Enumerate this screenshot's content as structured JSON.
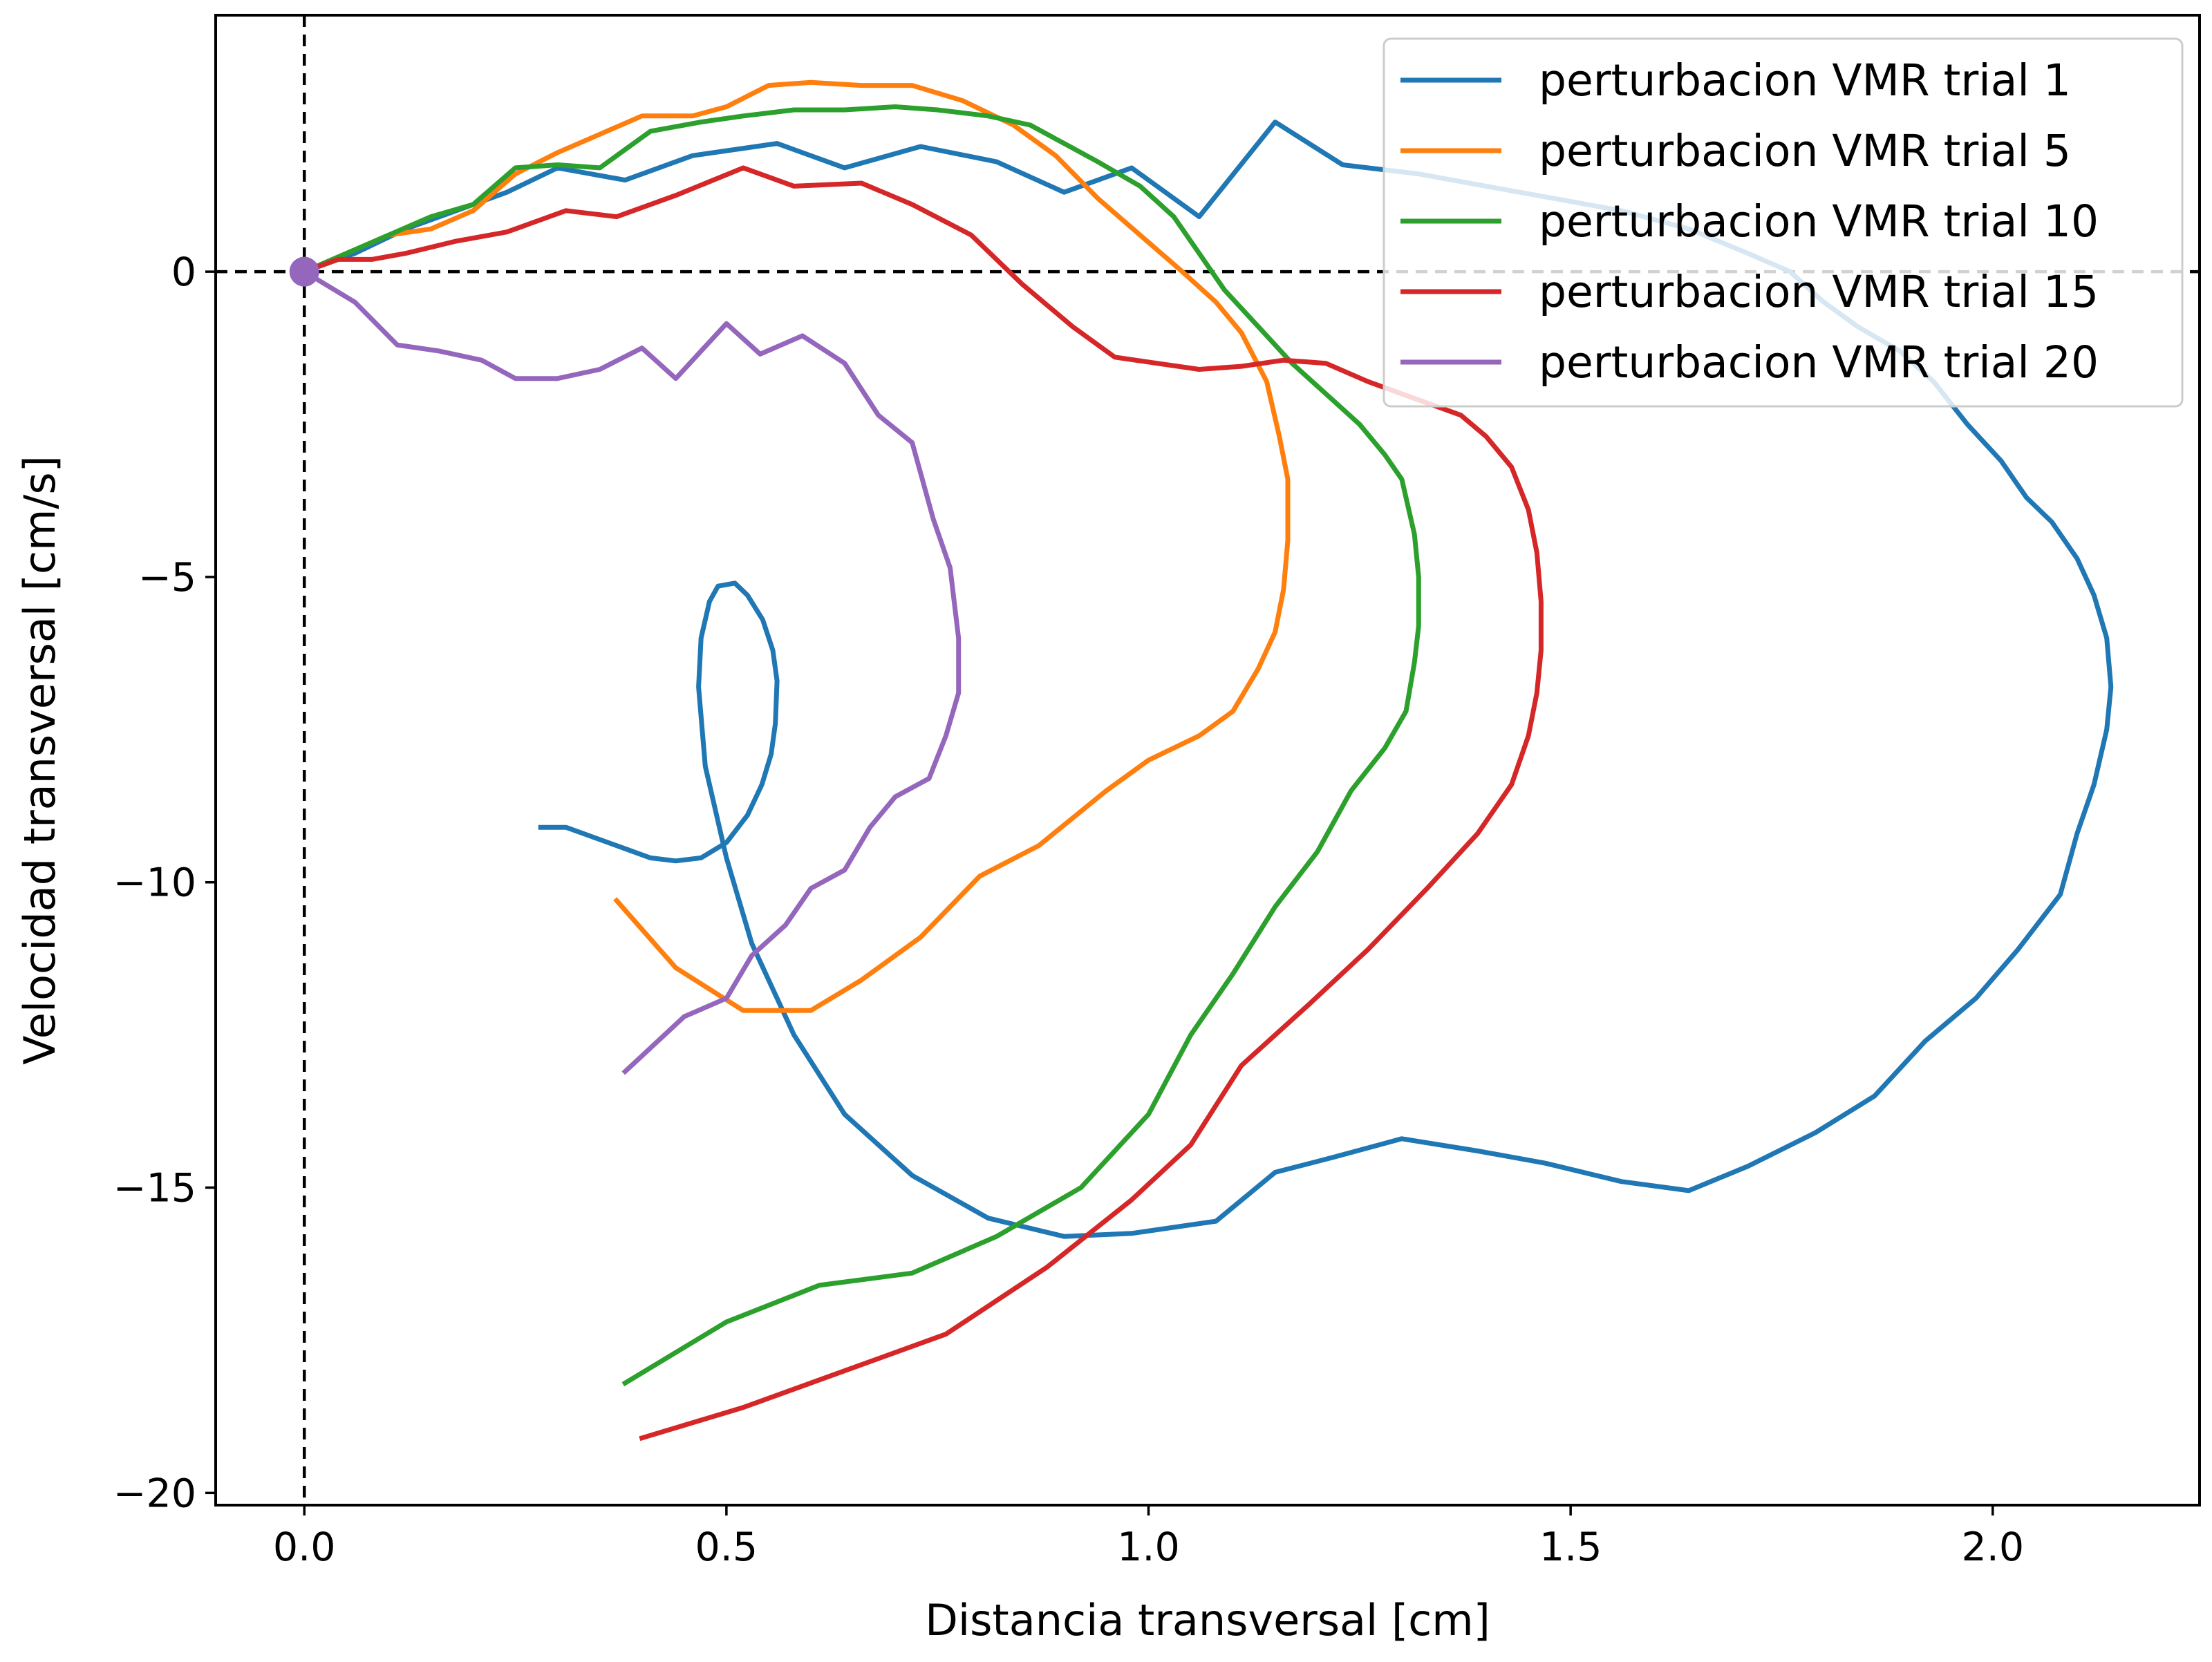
{
  "chart_data": {
    "type": "line",
    "title": "",
    "xlabel": "Distancia transversal [cm]",
    "ylabel": "Velocidad transversal [cm/s]",
    "xlim": [
      -0.105,
      2.245
    ],
    "ylim": [
      -20.2,
      4.2
    ],
    "x_ticks": [
      0.0,
      0.5,
      1.0,
      1.5,
      2.0
    ],
    "x_tick_labels": [
      "0.0",
      "0.5",
      "1.0",
      "1.5",
      "2.0"
    ],
    "y_ticks": [
      0,
      -5,
      -10,
      -15,
      -20
    ],
    "y_tick_labels": [
      "0",
      "−5",
      "−10",
      "−15",
      "−20"
    ],
    "grid": false,
    "legend_position": "top-right",
    "reference_lines": [
      {
        "orientation": "horizontal",
        "value": 0,
        "style": "dashed",
        "color": "#000000"
      },
      {
        "orientation": "vertical",
        "value": 0,
        "style": "dashed",
        "color": "#000000"
      }
    ],
    "origin_marker": {
      "x": 0,
      "y": 0,
      "color": "#9467bd"
    },
    "series": [
      {
        "name": "perturbacion VMR trial 1",
        "color": "#1f77b4",
        "points": [
          [
            0,
            0
          ],
          [
            0.06,
            0.3
          ],
          [
            0.12,
            0.7
          ],
          [
            0.18,
            1.0
          ],
          [
            0.24,
            1.3
          ],
          [
            0.3,
            1.7
          ],
          [
            0.38,
            1.5
          ],
          [
            0.46,
            1.9
          ],
          [
            0.56,
            2.1
          ],
          [
            0.64,
            1.7
          ],
          [
            0.73,
            2.05
          ],
          [
            0.82,
            1.8
          ],
          [
            0.9,
            1.3
          ],
          [
            0.98,
            1.7
          ],
          [
            1.06,
            0.9
          ],
          [
            1.15,
            2.45
          ],
          [
            1.23,
            1.75
          ],
          [
            1.32,
            1.6
          ],
          [
            1.4,
            1.4
          ],
          [
            1.48,
            1.2
          ],
          [
            1.56,
            1.0
          ],
          [
            1.64,
            0.7
          ],
          [
            1.71,
            0.3
          ],
          [
            1.76,
            0.0
          ],
          [
            1.8,
            -0.5
          ],
          [
            1.84,
            -0.9
          ],
          [
            1.89,
            -1.3
          ],
          [
            1.93,
            -1.8
          ],
          [
            1.97,
            -2.5
          ],
          [
            2.01,
            -3.1
          ],
          [
            2.04,
            -3.7
          ],
          [
            2.07,
            -4.1
          ],
          [
            2.1,
            -4.7
          ],
          [
            2.12,
            -5.3
          ],
          [
            2.135,
            -6.0
          ],
          [
            2.14,
            -6.8
          ],
          [
            2.135,
            -7.5
          ],
          [
            2.12,
            -8.4
          ],
          [
            2.1,
            -9.2
          ],
          [
            2.08,
            -10.2
          ],
          [
            2.03,
            -11.1
          ],
          [
            1.98,
            -11.9
          ],
          [
            1.92,
            -12.6
          ],
          [
            1.86,
            -13.5
          ],
          [
            1.79,
            -14.1
          ],
          [
            1.71,
            -14.65
          ],
          [
            1.64,
            -15.05
          ],
          [
            1.56,
            -14.9
          ],
          [
            1.47,
            -14.6
          ],
          [
            1.39,
            -14.4
          ],
          [
            1.3,
            -14.2
          ],
          [
            1.22,
            -14.5
          ],
          [
            1.15,
            -14.75
          ],
          [
            1.08,
            -15.55
          ],
          [
            0.98,
            -15.75
          ],
          [
            0.9,
            -15.8
          ],
          [
            0.81,
            -15.5
          ],
          [
            0.72,
            -14.8
          ],
          [
            0.64,
            -13.8
          ],
          [
            0.58,
            -12.5
          ],
          [
            0.53,
            -11.0
          ],
          [
            0.5,
            -9.6
          ],
          [
            0.475,
            -8.1
          ],
          [
            0.467,
            -6.8
          ],
          [
            0.47,
            -6.0
          ],
          [
            0.48,
            -5.4
          ],
          [
            0.49,
            -5.15
          ],
          [
            0.51,
            -5.1
          ],
          [
            0.525,
            -5.3
          ],
          [
            0.543,
            -5.7
          ],
          [
            0.555,
            -6.2
          ],
          [
            0.56,
            -6.7
          ],
          [
            0.558,
            -7.4
          ],
          [
            0.553,
            -7.9
          ],
          [
            0.542,
            -8.4
          ],
          [
            0.525,
            -8.9
          ],
          [
            0.5,
            -9.35
          ],
          [
            0.47,
            -9.6
          ],
          [
            0.44,
            -9.65
          ],
          [
            0.41,
            -9.6
          ],
          [
            0.37,
            -9.4
          ],
          [
            0.33,
            -9.2
          ],
          [
            0.31,
            -9.1
          ],
          [
            0.28,
            -9.1
          ]
        ]
      },
      {
        "name": "perturbacion VMR trial 5",
        "color": "#ff7f0e",
        "points": [
          [
            0,
            0
          ],
          [
            0.05,
            0.3
          ],
          [
            0.1,
            0.6
          ],
          [
            0.15,
            0.7
          ],
          [
            0.2,
            1.0
          ],
          [
            0.25,
            1.6
          ],
          [
            0.3,
            1.95
          ],
          [
            0.35,
            2.25
          ],
          [
            0.4,
            2.55
          ],
          [
            0.46,
            2.55
          ],
          [
            0.5,
            2.7
          ],
          [
            0.55,
            3.05
          ],
          [
            0.6,
            3.1
          ],
          [
            0.66,
            3.05
          ],
          [
            0.72,
            3.05
          ],
          [
            0.78,
            2.8
          ],
          [
            0.84,
            2.4
          ],
          [
            0.89,
            1.9
          ],
          [
            0.94,
            1.2
          ],
          [
            0.99,
            0.6
          ],
          [
            1.04,
            0.0
          ],
          [
            1.08,
            -0.5
          ],
          [
            1.11,
            -1.0
          ],
          [
            1.14,
            -1.8
          ],
          [
            1.155,
            -2.7
          ],
          [
            1.165,
            -3.4
          ],
          [
            1.165,
            -4.4
          ],
          [
            1.16,
            -5.2
          ],
          [
            1.15,
            -5.9
          ],
          [
            1.13,
            -6.5
          ],
          [
            1.1,
            -7.2
          ],
          [
            1.06,
            -7.6
          ],
          [
            1.0,
            -8.0
          ],
          [
            0.95,
            -8.5
          ],
          [
            0.87,
            -9.4
          ],
          [
            0.8,
            -9.9
          ],
          [
            0.73,
            -10.9
          ],
          [
            0.66,
            -11.6
          ],
          [
            0.6,
            -12.1
          ],
          [
            0.52,
            -12.1
          ],
          [
            0.44,
            -11.4
          ],
          [
            0.37,
            -10.3
          ]
        ]
      },
      {
        "name": "perturbacion VMR trial 10",
        "color": "#2ca02c",
        "points": [
          [
            0,
            0
          ],
          [
            0.05,
            0.3
          ],
          [
            0.1,
            0.6
          ],
          [
            0.15,
            0.9
          ],
          [
            0.2,
            1.1
          ],
          [
            0.25,
            1.7
          ],
          [
            0.3,
            1.75
          ],
          [
            0.35,
            1.7
          ],
          [
            0.41,
            2.3
          ],
          [
            0.47,
            2.45
          ],
          [
            0.52,
            2.55
          ],
          [
            0.58,
            2.65
          ],
          [
            0.64,
            2.65
          ],
          [
            0.7,
            2.7
          ],
          [
            0.75,
            2.65
          ],
          [
            0.81,
            2.55
          ],
          [
            0.86,
            2.4
          ],
          [
            0.9,
            2.1
          ],
          [
            0.94,
            1.8
          ],
          [
            0.99,
            1.4
          ],
          [
            1.03,
            0.9
          ],
          [
            1.06,
            0.3
          ],
          [
            1.09,
            -0.3
          ],
          [
            1.13,
            -0.9
          ],
          [
            1.17,
            -1.5
          ],
          [
            1.21,
            -2.0
          ],
          [
            1.25,
            -2.5
          ],
          [
            1.28,
            -3.0
          ],
          [
            1.3,
            -3.4
          ],
          [
            1.315,
            -4.3
          ],
          [
            1.32,
            -5.0
          ],
          [
            1.32,
            -5.8
          ],
          [
            1.315,
            -6.4
          ],
          [
            1.305,
            -7.2
          ],
          [
            1.28,
            -7.8
          ],
          [
            1.24,
            -8.5
          ],
          [
            1.2,
            -9.5
          ],
          [
            1.15,
            -10.4
          ],
          [
            1.1,
            -11.5
          ],
          [
            1.05,
            -12.5
          ],
          [
            1.0,
            -13.8
          ],
          [
            0.92,
            -15.0
          ],
          [
            0.82,
            -15.8
          ],
          [
            0.72,
            -16.4
          ],
          [
            0.61,
            -16.6
          ],
          [
            0.5,
            -17.2
          ],
          [
            0.38,
            -18.2
          ]
        ]
      },
      {
        "name": "perturbacion VMR trial 15",
        "color": "#d62728",
        "points": [
          [
            0,
            0
          ],
          [
            0.04,
            0.2
          ],
          [
            0.08,
            0.2
          ],
          [
            0.12,
            0.3
          ],
          [
            0.18,
            0.5
          ],
          [
            0.24,
            0.65
          ],
          [
            0.31,
            1.0
          ],
          [
            0.37,
            0.9
          ],
          [
            0.44,
            1.25
          ],
          [
            0.52,
            1.7
          ],
          [
            0.58,
            1.4
          ],
          [
            0.66,
            1.45
          ],
          [
            0.72,
            1.1
          ],
          [
            0.79,
            0.6
          ],
          [
            0.85,
            -0.2
          ],
          [
            0.91,
            -0.9
          ],
          [
            0.96,
            -1.4
          ],
          [
            1.01,
            -1.5
          ],
          [
            1.06,
            -1.6
          ],
          [
            1.11,
            -1.55
          ],
          [
            1.16,
            -1.45
          ],
          [
            1.21,
            -1.5
          ],
          [
            1.26,
            -1.8
          ],
          [
            1.32,
            -2.1
          ],
          [
            1.37,
            -2.35
          ],
          [
            1.4,
            -2.7
          ],
          [
            1.43,
            -3.2
          ],
          [
            1.45,
            -3.9
          ],
          [
            1.46,
            -4.6
          ],
          [
            1.465,
            -5.4
          ],
          [
            1.465,
            -6.2
          ],
          [
            1.46,
            -6.9
          ],
          [
            1.45,
            -7.6
          ],
          [
            1.43,
            -8.4
          ],
          [
            1.39,
            -9.2
          ],
          [
            1.33,
            -10.1
          ],
          [
            1.26,
            -11.1
          ],
          [
            1.19,
            -12.0
          ],
          [
            1.11,
            -13.0
          ],
          [
            1.05,
            -14.3
          ],
          [
            0.98,
            -15.2
          ],
          [
            0.88,
            -16.3
          ],
          [
            0.76,
            -17.4
          ],
          [
            0.64,
            -18.0
          ],
          [
            0.52,
            -18.6
          ],
          [
            0.4,
            -19.1
          ]
        ]
      },
      {
        "name": "perturbacion VMR trial 20",
        "color": "#9467bd",
        "points": [
          [
            0,
            0
          ],
          [
            0.06,
            -0.5
          ],
          [
            0.11,
            -1.2
          ],
          [
            0.16,
            -1.3
          ],
          [
            0.21,
            -1.45
          ],
          [
            0.25,
            -1.75
          ],
          [
            0.3,
            -1.75
          ],
          [
            0.35,
            -1.6
          ],
          [
            0.4,
            -1.25
          ],
          [
            0.44,
            -1.75
          ],
          [
            0.5,
            -0.85
          ],
          [
            0.54,
            -1.35
          ],
          [
            0.59,
            -1.05
          ],
          [
            0.64,
            -1.5
          ],
          [
            0.68,
            -2.35
          ],
          [
            0.72,
            -2.8
          ],
          [
            0.745,
            -4.05
          ],
          [
            0.765,
            -4.85
          ],
          [
            0.775,
            -6.0
          ],
          [
            0.775,
            -6.9
          ],
          [
            0.76,
            -7.6
          ],
          [
            0.74,
            -8.3
          ],
          [
            0.7,
            -8.6
          ],
          [
            0.67,
            -9.1
          ],
          [
            0.64,
            -9.8
          ],
          [
            0.6,
            -10.1
          ],
          [
            0.57,
            -10.7
          ],
          [
            0.53,
            -11.2
          ],
          [
            0.5,
            -11.9
          ],
          [
            0.45,
            -12.2
          ],
          [
            0.38,
            -13.1
          ]
        ]
      }
    ]
  }
}
